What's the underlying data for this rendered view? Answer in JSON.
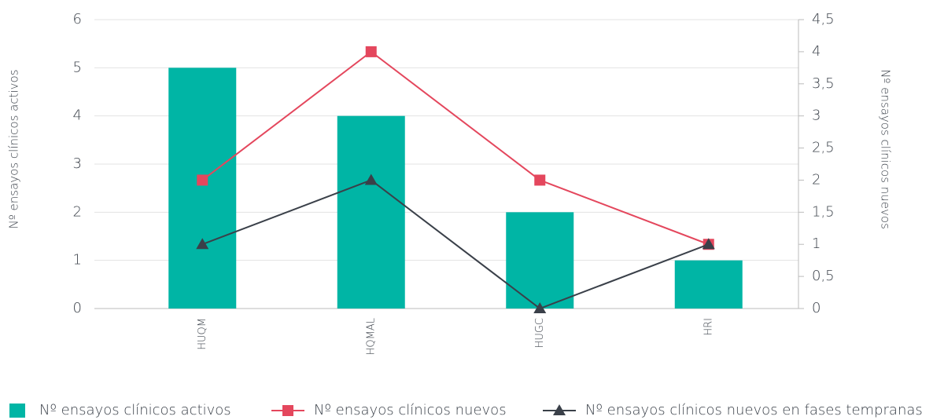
{
  "chart_data": {
    "type": "bar_line",
    "categories": [
      "HUQM",
      "HQMAL",
      "HUGC",
      "HRI"
    ],
    "series": [
      {
        "name": "Nº ensayos clínicos activos",
        "color": "#00b5a5",
        "type": "bar",
        "axis": "y",
        "values": [
          5,
          4,
          2,
          1
        ]
      },
      {
        "name": "Nº ensayos clínicos nuevos",
        "color": "#e4475d",
        "type": "line",
        "marker": "square",
        "axis": "y2",
        "values": [
          2,
          4,
          2,
          1
        ]
      },
      {
        "name": "Nº ensayos clínicos nuevos en fases tempranas",
        "color": "#3a4049",
        "type": "line",
        "marker": "triangle",
        "axis": "y2",
        "values": [
          1,
          2,
          0,
          1
        ]
      }
    ],
    "ylabel": "Nº ensayos clínicos activos",
    "y2label": "Nº ensayos clínicos nuevos",
    "ylim": [
      0,
      6
    ],
    "yticks": [
      0,
      1,
      2,
      3,
      4,
      5,
      6
    ],
    "y2lim": [
      0,
      4.5
    ],
    "y2ticks": [
      0,
      {
        "value": 0.5,
        "label": "0,5"
      },
      1,
      {
        "value": 1.5,
        "label": "1,5"
      },
      2,
      {
        "value": 2.5,
        "label": "2,5"
      },
      3,
      {
        "value": 3.5,
        "label": "3,5"
      },
      4,
      {
        "value": 4.5,
        "label": "4,5"
      }
    ],
    "grid": true,
    "legend": "bottom"
  }
}
